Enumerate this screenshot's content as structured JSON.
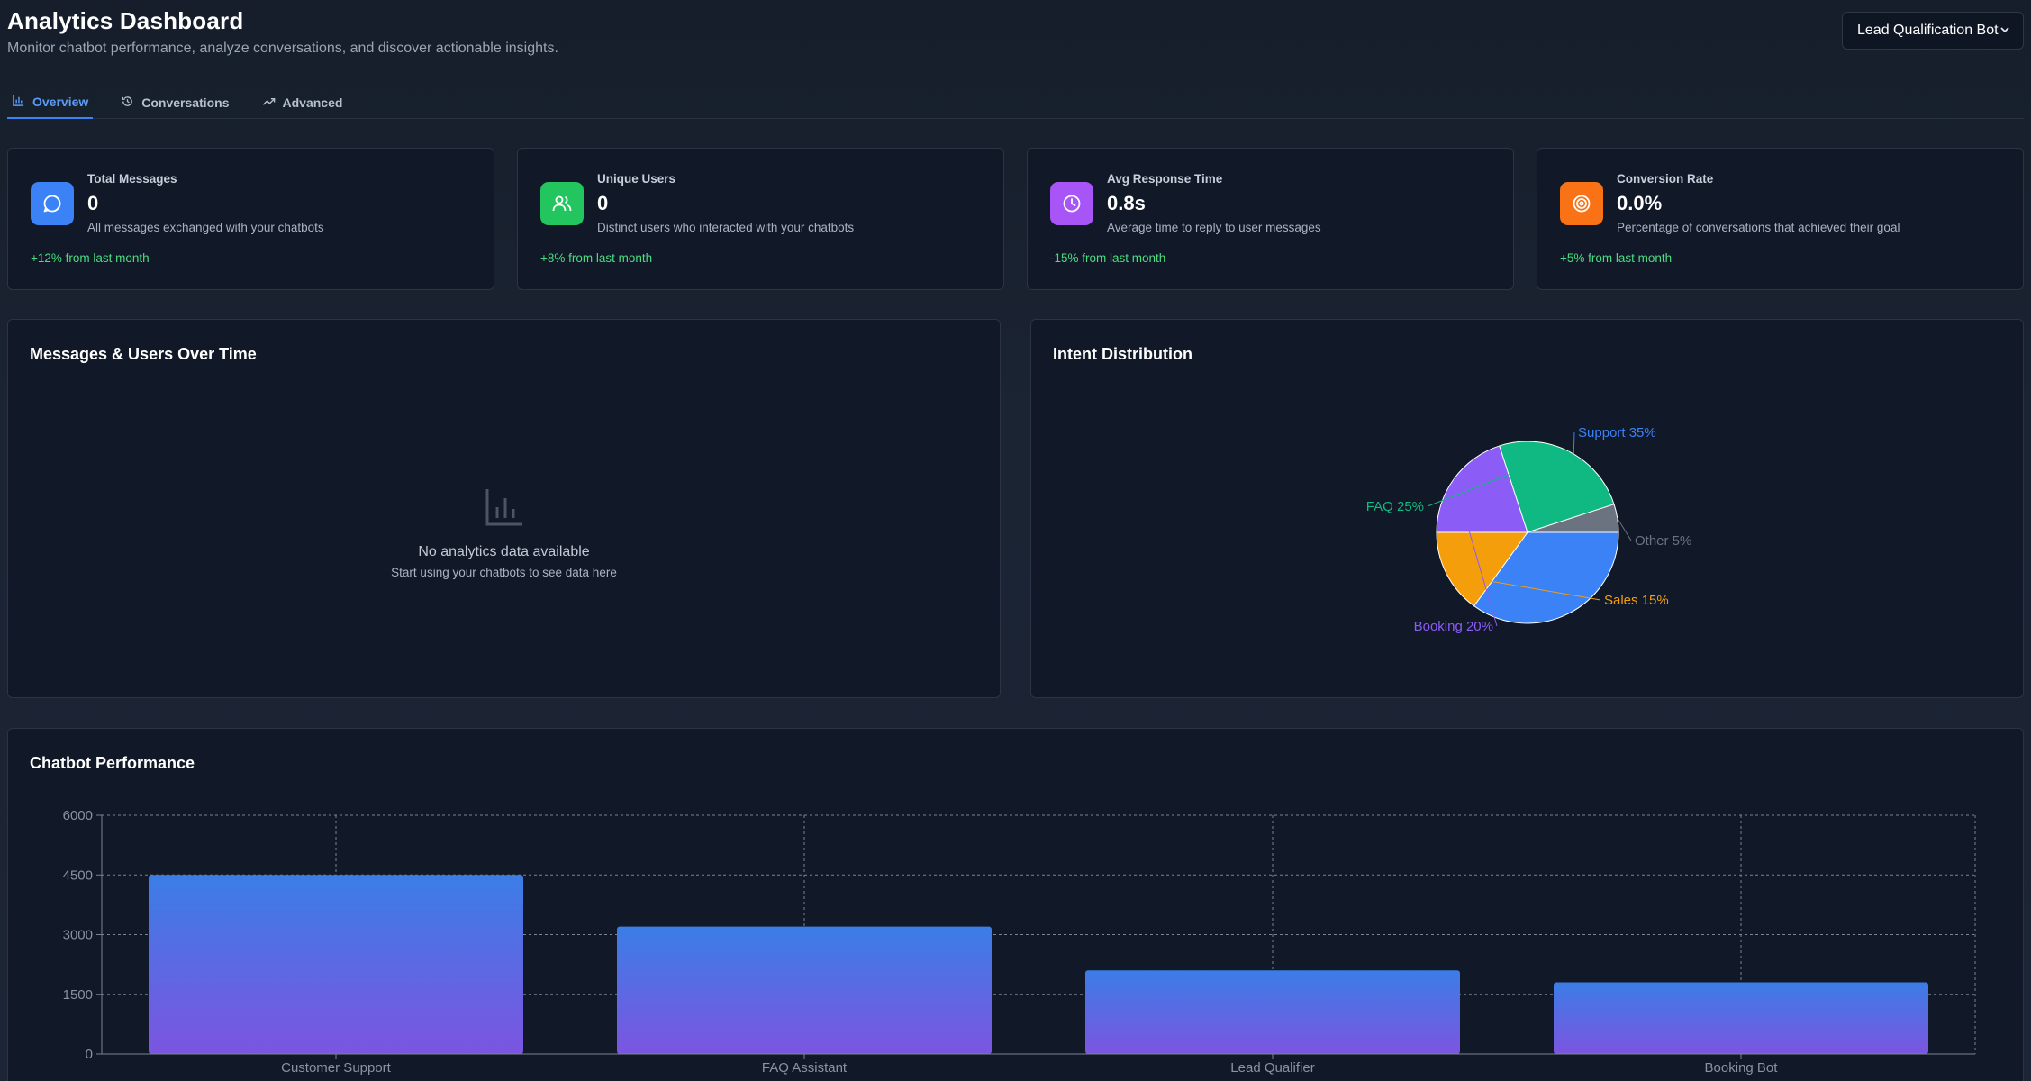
{
  "header": {
    "title": "Analytics Dashboard",
    "subtitle": "Monitor chatbot performance, analyze conversations, and discover actionable insights."
  },
  "bot_select": {
    "selected": "Lead Qualification Bot",
    "chevron_icon": "chevron-down-icon"
  },
  "tabs": [
    {
      "label": "Overview",
      "icon": "bar-chart-icon",
      "active": true
    },
    {
      "label": "Conversations",
      "icon": "history-icon",
      "active": false
    },
    {
      "label": "Advanced",
      "icon": "trending-up-icon",
      "active": false
    }
  ],
  "stats": [
    {
      "label": "Total Messages",
      "value": "0",
      "desc": "All messages exchanged with your chatbots",
      "trend": "+12% from last month",
      "icon": "message-circle-icon",
      "color": "#3b82f6"
    },
    {
      "label": "Unique Users",
      "value": "0",
      "desc": "Distinct users who interacted with your chatbots",
      "trend": "+8% from last month",
      "icon": "users-icon",
      "color": "#22c55e"
    },
    {
      "label": "Avg Response Time",
      "value": "0.8s",
      "desc": "Average time to reply to user messages",
      "trend": "-15% from last month",
      "icon": "clock-icon",
      "color": "#a855f7"
    },
    {
      "label": "Conversion Rate",
      "value": "0.0%",
      "desc": "Percentage of conversations that achieved their goal",
      "trend": "+5% from last month",
      "icon": "target-icon",
      "color": "#f97316"
    }
  ],
  "messages_panel": {
    "title": "Messages & Users Over Time",
    "empty_title": "No analytics data available",
    "empty_sub": "Start using your chatbots to see data here",
    "empty_icon": "bar-chart-icon"
  },
  "intent_panel": {
    "title": "Intent Distribution"
  },
  "performance_panel": {
    "title": "Chatbot Performance"
  },
  "chart_data": [
    {
      "type": "pie",
      "title": "Intent Distribution",
      "slices": [
        {
          "label": "Support",
          "value": 35,
          "color": "#3b82f6",
          "text": "Support 35%"
        },
        {
          "label": "Sales",
          "value": 15,
          "color": "#f59e0b",
          "text": "Sales 15%"
        },
        {
          "label": "Booking",
          "value": 20,
          "color": "#8b5cf6",
          "text": "Booking 20%"
        },
        {
          "label": "FAQ",
          "value": 25,
          "color": "#10b981",
          "text": "FAQ 25%"
        },
        {
          "label": "Other",
          "value": 5,
          "color": "#6b7280",
          "text": "Other 5%"
        }
      ]
    },
    {
      "type": "bar",
      "title": "Chatbot Performance",
      "categories": [
        "Customer Support",
        "FAQ Assistant",
        "Lead Qualifier",
        "Booking Bot"
      ],
      "values": [
        4500,
        3200,
        2100,
        1800
      ],
      "ylim": [
        0,
        6000
      ],
      "yticks": [
        "0",
        "1500",
        "3000",
        "4500",
        "6000"
      ],
      "grid": true,
      "bar_gradient": [
        "#3b7de6",
        "#7c55e0"
      ]
    }
  ]
}
